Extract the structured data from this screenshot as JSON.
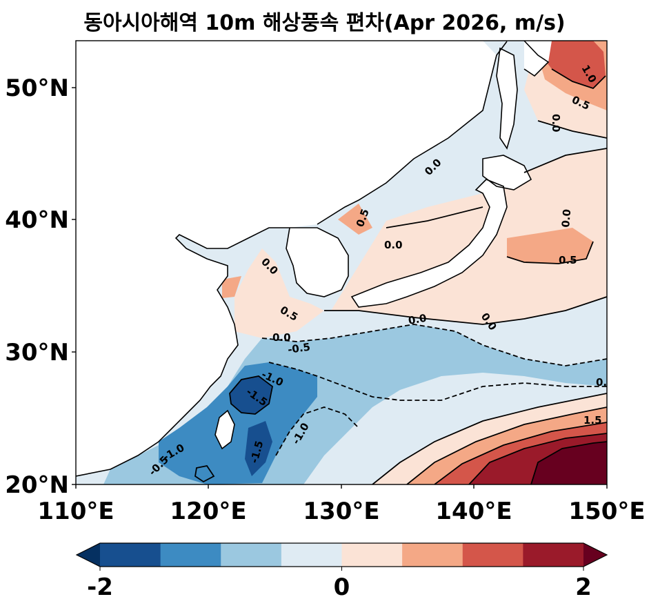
{
  "title": "동아시아해역 10m 해상풍속 편차(Apr 2026, m/s)",
  "map": {
    "lon_range": [
      110,
      150
    ],
    "lat_range": [
      20,
      53.5
    ],
    "x_ticks": [
      "110°E",
      "120°E",
      "130°E",
      "140°E",
      "150°E"
    ],
    "y_ticks": [
      "20°N",
      "30°N",
      "40°N",
      "50°N"
    ],
    "land_color": "#ffffff",
    "coastline_color": "#000000"
  },
  "colorbar": {
    "levels": [
      -2,
      -1.5,
      -1,
      -0.5,
      0,
      0.5,
      1,
      1.5,
      2
    ],
    "colors": [
      "#053061",
      "#174f8f",
      "#3d8bc2",
      "#9bc8e0",
      "#dfebf3",
      "#fbe3d6",
      "#f4a886",
      "#d4564a",
      "#9a1a2a",
      "#67001f"
    ],
    "tick_labels": [
      "-2",
      "0",
      "2"
    ],
    "extend": "both"
  },
  "contour_labels": [
    "0.0",
    "0.5",
    "1.0",
    "0.0",
    "0.5",
    "0.0",
    "0.0",
    "0.0",
    "0.5",
    "0.0",
    "-0.5",
    "-1.0",
    "-1.5",
    "-1.0",
    "-1.5",
    "-1.0",
    "-0.5",
    "0.0",
    "0.0",
    "0.5",
    "0.0",
    "0.5",
    "1.5",
    "0."
  ]
}
